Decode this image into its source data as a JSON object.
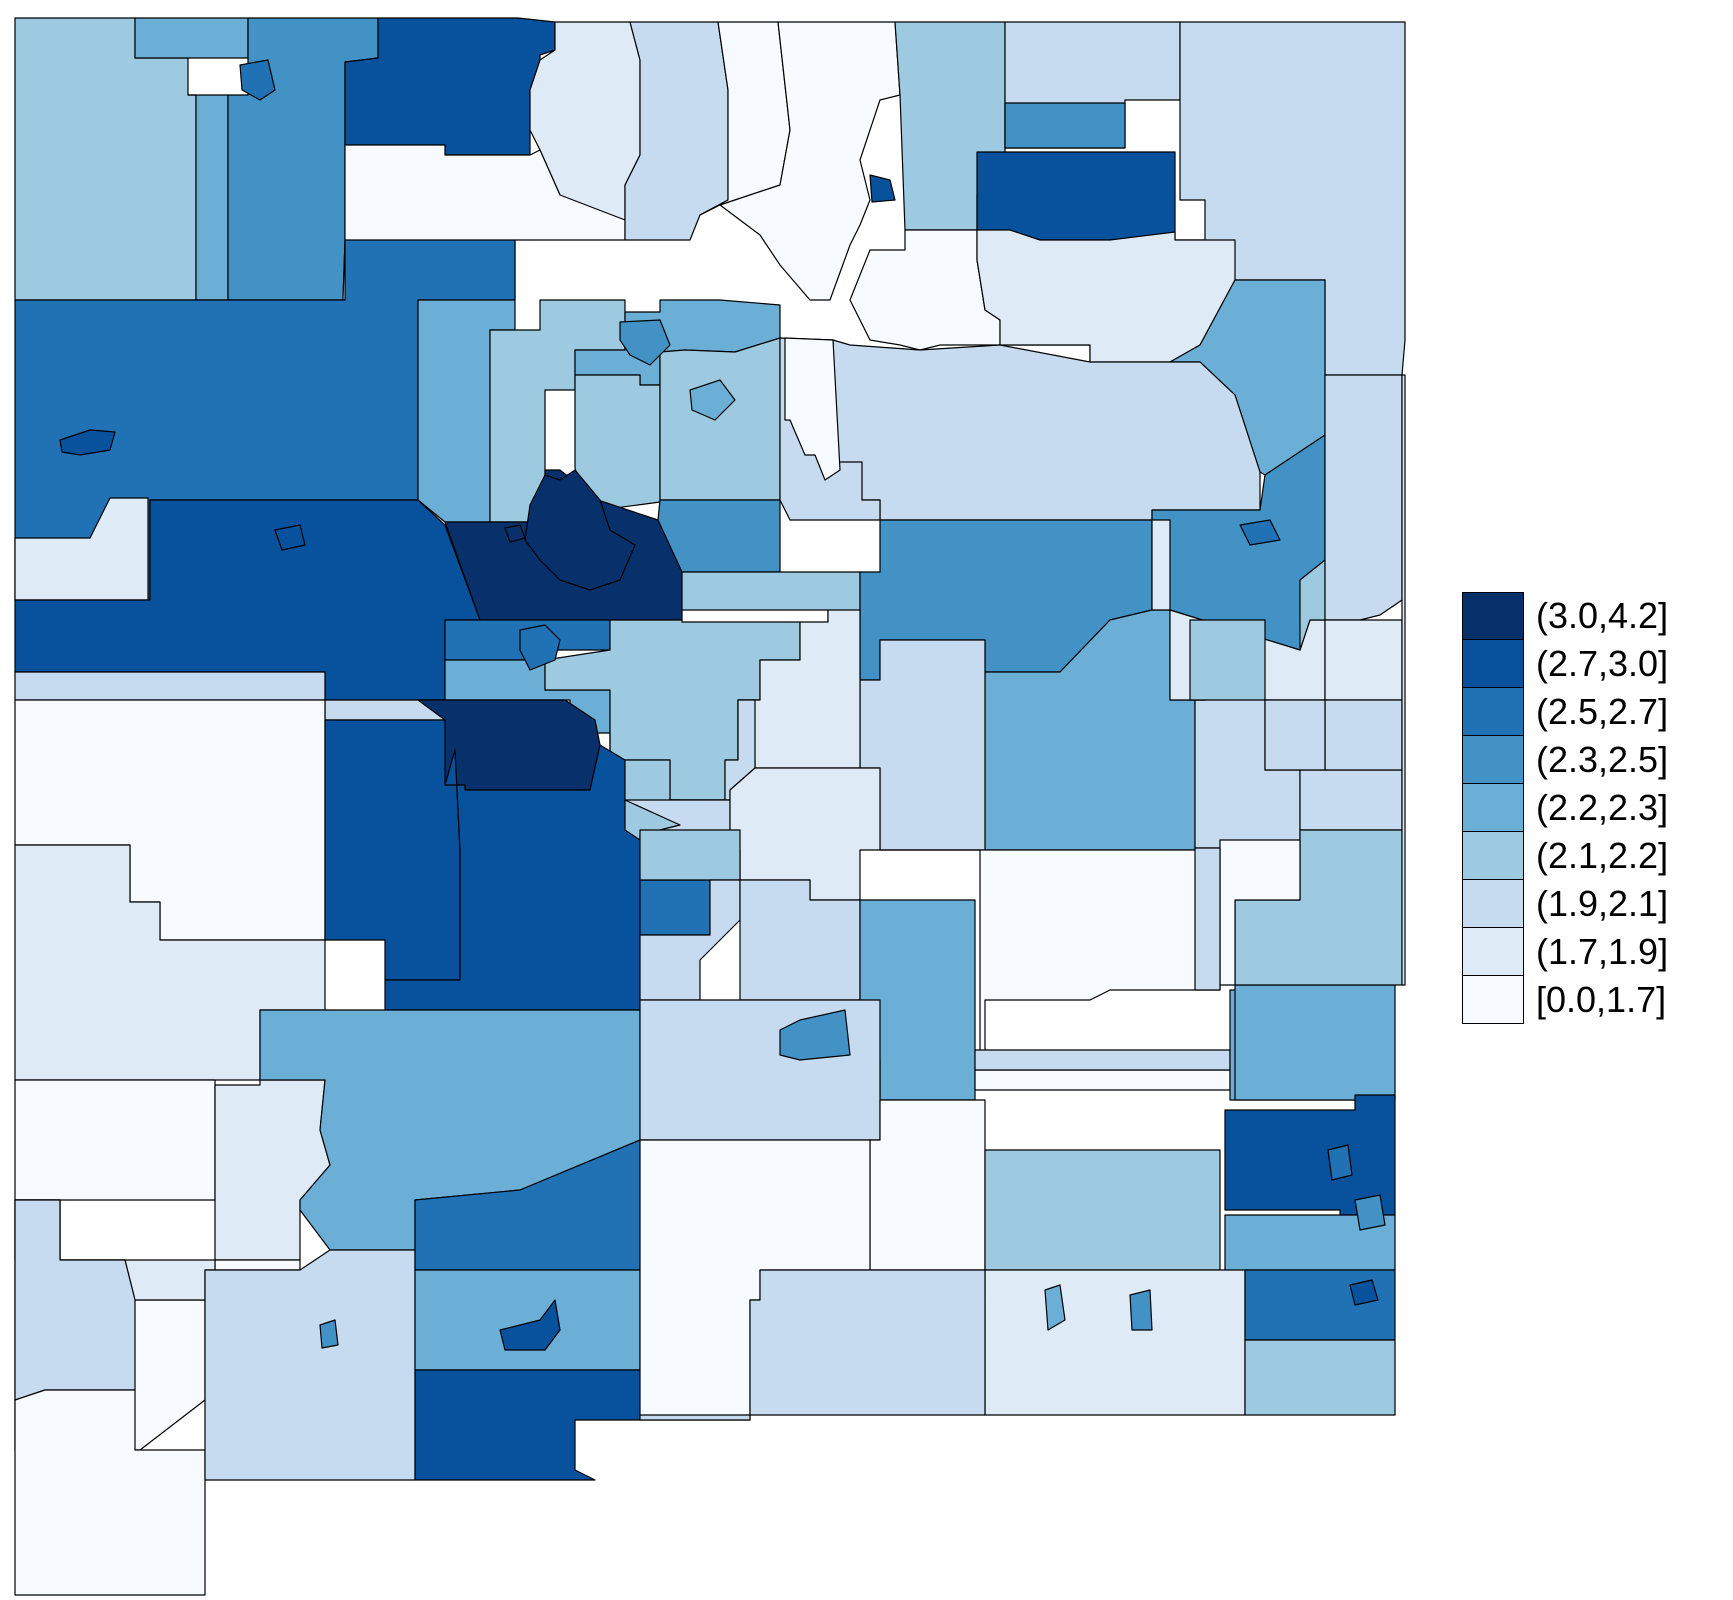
{
  "legend": {
    "classes": [
      {
        "label": "(3.0,4.2]",
        "color": "#08306b"
      },
      {
        "label": "(2.7,3.0]",
        "color": "#08519c"
      },
      {
        "label": "(2.5,2.7]",
        "color": "#2171b5"
      },
      {
        "label": "(2.3,2.5]",
        "color": "#4292c6"
      },
      {
        "label": "(2.2,2.3]",
        "color": "#6baed6"
      },
      {
        "label": "(2.1,2.2]",
        "color": "#9ecae1"
      },
      {
        "label": "(1.9,2.1]",
        "color": "#c6dbef"
      },
      {
        "label": "(1.7,1.9]",
        "color": "#deebf7"
      },
      {
        "label": "[0.0,1.7]",
        "color": "#f7fbff"
      }
    ]
  },
  "map": {
    "regions": [
      {
        "name": "r-nw-1",
        "cls": 5
      },
      {
        "name": "r-nw-2",
        "cls": 4
      },
      {
        "name": "r-nw-3",
        "cls": 3
      },
      {
        "name": "r-n-dark",
        "cls": 1
      },
      {
        "name": "r-n-light",
        "cls": 7
      },
      {
        "name": "r-n-white",
        "cls": 8
      },
      {
        "name": "r-n-mid",
        "cls": 6
      },
      {
        "name": "r-n-col1",
        "cls": 8
      },
      {
        "name": "r-n-col2",
        "cls": 8
      },
      {
        "name": "r-ne-1",
        "cls": 5
      },
      {
        "name": "r-ne-2",
        "cls": 6
      },
      {
        "name": "r-ne-3",
        "cls": 6
      },
      {
        "name": "r-ne-4",
        "cls": 3
      },
      {
        "name": "r-ne-5",
        "cls": 1
      },
      {
        "name": "r-ne-6",
        "cls": 8
      },
      {
        "name": "r-ne-7",
        "cls": 7
      },
      {
        "name": "r-ne-8",
        "cls": 4
      },
      {
        "name": "r-ne-9",
        "cls": 6
      },
      {
        "name": "r-w-1",
        "cls": 2
      },
      {
        "name": "r-w-2",
        "cls": 7
      },
      {
        "name": "r-w-3",
        "cls": 1
      },
      {
        "name": "r-w-4",
        "cls": 6
      },
      {
        "name": "r-c-1",
        "cls": 4
      },
      {
        "name": "r-c-2",
        "cls": 5
      },
      {
        "name": "r-c-3",
        "cls": 4
      },
      {
        "name": "r-c-4",
        "cls": 5
      },
      {
        "name": "r-c-5",
        "cls": 0
      },
      {
        "name": "r-c-6",
        "cls": 2
      },
      {
        "name": "r-c-7",
        "cls": 4
      },
      {
        "name": "r-c-8",
        "cls": 5
      },
      {
        "name": "r-c-9",
        "cls": 3
      },
      {
        "name": "r-c-10",
        "cls": 6
      },
      {
        "name": "r-c-11",
        "cls": 8
      },
      {
        "name": "r-c-12",
        "cls": 5
      },
      {
        "name": "r-c-13",
        "cls": 5
      },
      {
        "name": "r-c-14",
        "cls": 3
      },
      {
        "name": "r-c-15",
        "cls": 3
      },
      {
        "name": "r-c-16",
        "cls": 4
      },
      {
        "name": "r-c-17",
        "cls": 6
      },
      {
        "name": "r-c-18",
        "cls": 7
      },
      {
        "name": "r-c-19",
        "cls": 6
      },
      {
        "name": "r-c-20",
        "cls": 5
      },
      {
        "name": "r-c-21",
        "cls": 6
      },
      {
        "name": "r-c-22",
        "cls": 7
      },
      {
        "name": "r-c-23",
        "cls": 8
      },
      {
        "name": "r-c-24",
        "cls": 6
      },
      {
        "name": "r-c-25",
        "cls": 7
      },
      {
        "name": "r-c-26",
        "cls": 5
      },
      {
        "name": "r-c-27",
        "cls": 6
      },
      {
        "name": "r-sw-1",
        "cls": 6
      },
      {
        "name": "r-sw-2",
        "cls": 8
      },
      {
        "name": "r-sw-3",
        "cls": 7
      },
      {
        "name": "r-sw-4",
        "cls": 1
      },
      {
        "name": "r-sw-5",
        "cls": 0
      },
      {
        "name": "r-sw-6",
        "cls": 1
      },
      {
        "name": "r-sw-7",
        "cls": 8
      },
      {
        "name": "r-sw-8",
        "cls": 7
      },
      {
        "name": "r-sw-9",
        "cls": 4
      },
      {
        "name": "r-sw-10",
        "cls": 8
      },
      {
        "name": "r-sw-11",
        "cls": 7
      },
      {
        "name": "r-sw-12",
        "cls": 6
      },
      {
        "name": "r-sw-13",
        "cls": 8
      },
      {
        "name": "r-sw-14",
        "cls": 6
      },
      {
        "name": "r-sw-15",
        "cls": 2
      },
      {
        "name": "r-sw-16",
        "cls": 4
      },
      {
        "name": "r-sw-17",
        "cls": 1
      },
      {
        "name": "r-s-1",
        "cls": 2
      },
      {
        "name": "r-s-2",
        "cls": 5
      },
      {
        "name": "r-s-3",
        "cls": 6
      },
      {
        "name": "r-s-4",
        "cls": 6
      },
      {
        "name": "r-s-5",
        "cls": 4
      },
      {
        "name": "r-s-6",
        "cls": 6
      },
      {
        "name": "r-s-7",
        "cls": 8
      },
      {
        "name": "r-s-8",
        "cls": 6
      },
      {
        "name": "r-s-9",
        "cls": 4
      },
      {
        "name": "r-s-10",
        "cls": 8
      },
      {
        "name": "r-s-11",
        "cls": 5
      },
      {
        "name": "r-s-12",
        "cls": 8
      },
      {
        "name": "r-s-13",
        "cls": 7
      },
      {
        "name": "r-s-14",
        "cls": 6
      },
      {
        "name": "r-se-1",
        "cls": 4
      },
      {
        "name": "r-se-2",
        "cls": 1
      },
      {
        "name": "r-se-3",
        "cls": 4
      },
      {
        "name": "r-se-4",
        "cls": 2
      },
      {
        "name": "r-se-5",
        "cls": 5
      },
      {
        "name": "r-e-1",
        "cls": 7
      },
      {
        "name": "r-e-2",
        "cls": 6
      },
      {
        "name": "r-e-3",
        "cls": 5
      },
      {
        "name": "r-e-4",
        "cls": 8
      },
      {
        "name": "r-e-5",
        "cls": 7
      },
      {
        "name": "r-e-6",
        "cls": 6
      },
      {
        "name": "r-e-7",
        "cls": 6
      },
      {
        "name": "r-e-8",
        "cls": 7
      },
      {
        "name": "r-e-9",
        "cls": 6
      },
      {
        "name": "r-e-10",
        "cls": 5
      },
      {
        "name": "city-1",
        "cls": 0
      },
      {
        "name": "city-2",
        "cls": 2
      },
      {
        "name": "city-3",
        "cls": 1
      },
      {
        "name": "city-4",
        "cls": 3
      },
      {
        "name": "city-5",
        "cls": 0
      },
      {
        "name": "city-6",
        "cls": 1
      },
      {
        "name": "city-7",
        "cls": 4
      },
      {
        "name": "city-8",
        "cls": 1
      },
      {
        "name": "city-9",
        "cls": 3
      },
      {
        "name": "city-10",
        "cls": 2
      },
      {
        "name": "city-11",
        "cls": 1
      },
      {
        "name": "city-12",
        "cls": 2
      },
      {
        "name": "city-13",
        "cls": 3
      },
      {
        "name": "city-14",
        "cls": 4
      },
      {
        "name": "city-15",
        "cls": 3
      },
      {
        "name": "city-16",
        "cls": 2
      },
      {
        "name": "city-17",
        "cls": 1
      },
      {
        "name": "city-18",
        "cls": 3
      }
    ]
  }
}
